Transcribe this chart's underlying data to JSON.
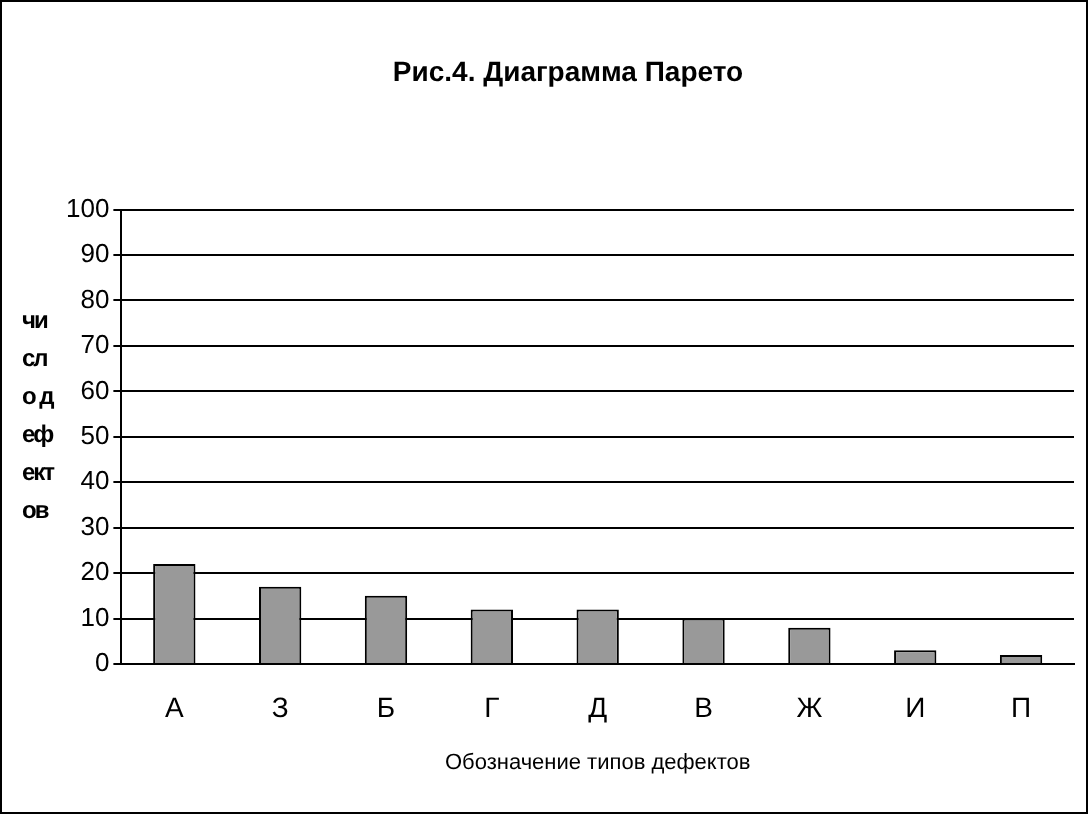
{
  "chart_data": {
    "type": "bar",
    "title": "Рис.4. Диаграмма Парето",
    "xlabel": "Обозначение типов дефектов",
    "ylabel": "число дефектов",
    "categories": [
      "А",
      "З",
      "Б",
      "Г",
      "Д",
      "В",
      "Ж",
      "И",
      "П"
    ],
    "values": [
      22,
      17,
      15,
      12,
      12,
      10,
      8,
      3,
      2
    ],
    "color": "#999999",
    "ylim": [
      0,
      100
    ],
    "yticks": [
      0,
      10,
      20,
      30,
      40,
      50,
      60,
      70,
      80,
      90,
      100
    ],
    "grid": "y",
    "legend": false
  }
}
